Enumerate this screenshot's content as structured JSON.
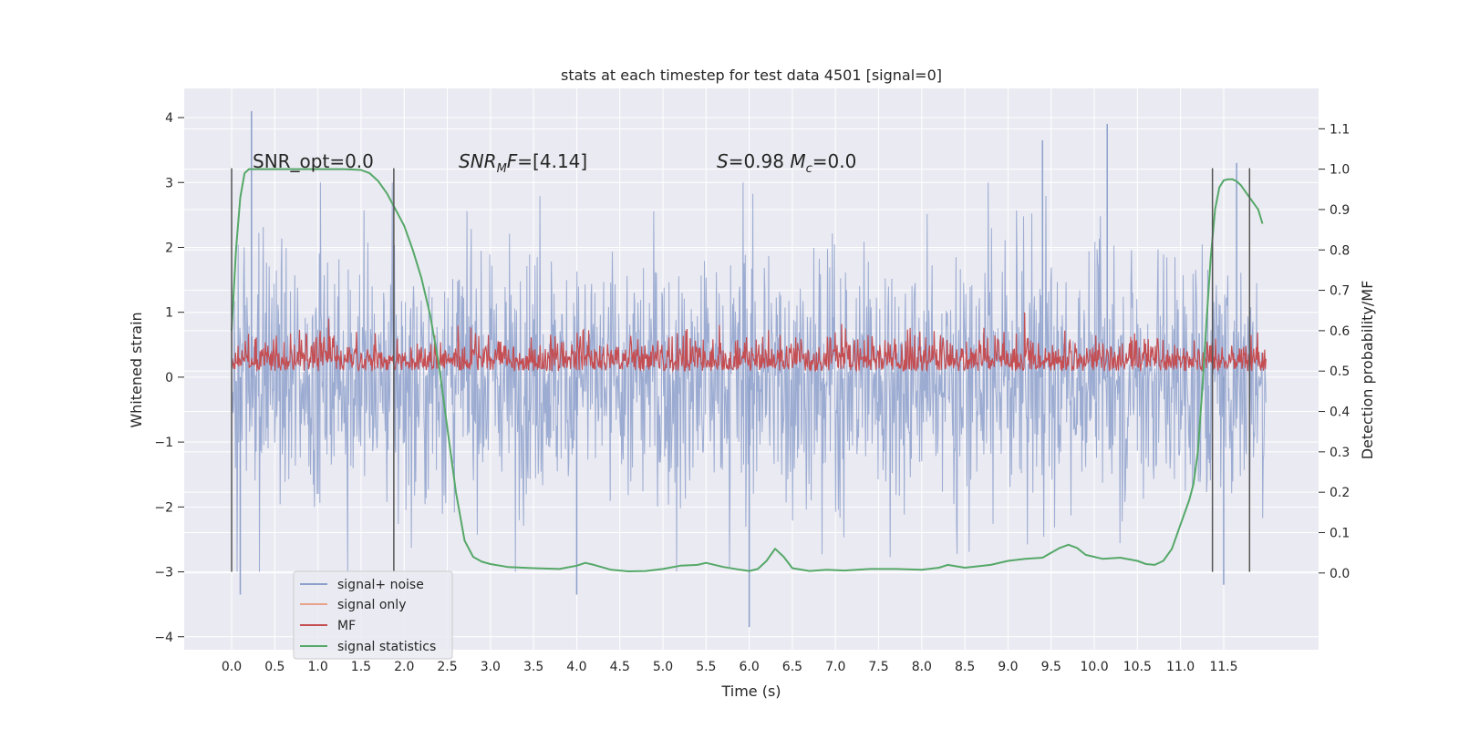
{
  "chart_data": {
    "type": "line",
    "title": "stats at each timestep for test data 4501 [signal=0]",
    "xlabel": "Time (s)",
    "ylabel": "Whitened strain",
    "ylabel_right": "Detection probability/MF",
    "xlim": [
      -0.55,
      12.6
    ],
    "ylim": [
      -4.2,
      4.45
    ],
    "ylim_right": [
      -0.19,
      1.2
    ],
    "x_ticks": [
      0.0,
      0.5,
      1.0,
      1.5,
      2.0,
      2.5,
      3.0,
      3.5,
      4.0,
      4.5,
      5.0,
      5.5,
      6.0,
      6.5,
      7.0,
      7.5,
      8.0,
      8.5,
      9.0,
      9.5,
      10.0,
      10.5,
      11.0,
      11.5
    ],
    "x_tick_labels": [
      "0.0",
      "0.5",
      "1.0",
      "1.5",
      "2.0",
      "2.5",
      "3.0",
      "3.5",
      "4.0",
      "4.5",
      "5.0",
      "5.5",
      "6.0",
      "6.5",
      "7.0",
      "7.5",
      "8.0",
      "8.5",
      "9.0",
      "9.5",
      "10.0",
      "10.5",
      "11.0",
      "11.5"
    ],
    "y_ticks": [
      -4,
      -3,
      -2,
      -1,
      0,
      1,
      2,
      3,
      4
    ],
    "y_tick_labels": [
      "−4",
      "−3",
      "−2",
      "−1",
      "0",
      "1",
      "2",
      "3",
      "4"
    ],
    "y_ticks_right": [
      0.0,
      0.1,
      0.2,
      0.3,
      0.4,
      0.5,
      0.6,
      0.7,
      0.8,
      0.9,
      1.0,
      1.1
    ],
    "y_tick_labels_right": [
      "0.0",
      "0.1",
      "0.2",
      "0.3",
      "0.4",
      "0.5",
      "0.6",
      "0.7",
      "0.8",
      "0.9",
      "1.0",
      "1.1"
    ],
    "grid": true,
    "legend_position": "lower-left",
    "annotations": [
      {
        "text": "SNR_opt=0.0",
        "x": 0.2,
        "y": 3.3
      },
      {
        "text": "SNR_MF=[4.14]",
        "x": 2.6,
        "y": 3.3
      },
      {
        "text": "S=0.98   M_c=0.0",
        "x": 5.6,
        "y": 3.3
      }
    ],
    "vertical_lines": [
      {
        "x": 0.0,
        "y_range": [
          -3.0,
          3.22
        ]
      },
      {
        "x": 1.88,
        "y_range": [
          -3.0,
          3.22
        ]
      },
      {
        "x": 11.37,
        "y_range": [
          -3.0,
          3.22
        ]
      },
      {
        "x": 11.8,
        "y_range": [
          -3.0,
          3.22
        ]
      }
    ],
    "series": [
      {
        "name": "signal+ noise",
        "axis": "left",
        "color": "#8da0cb",
        "description_x_range": [
          0.0,
          11.99
        ],
        "typical_envelope": [
          -1.8,
          1.8
        ],
        "peaks": [
          [
            0.23,
            4.1
          ],
          [
            0.1,
            -3.35
          ],
          [
            9.4,
            3.65
          ],
          [
            10.15,
            3.9
          ],
          [
            6.0,
            -3.85
          ],
          [
            4.0,
            -3.35
          ],
          [
            11.65,
            3.3
          ],
          [
            11.5,
            -3.2
          ]
        ]
      },
      {
        "name": "signal only",
        "axis": "left",
        "color": "#e8a38a",
        "x": [],
        "y": []
      },
      {
        "name": "MF",
        "axis": "right",
        "color": "#c44e52",
        "description_x_range": [
          0.0,
          11.99
        ],
        "baseline": 0.5,
        "typical_max": 0.62,
        "peak_max": 0.66
      },
      {
        "name": "signal statistics",
        "axis": "right",
        "color": "#55a868",
        "x": [
          0.0,
          0.05,
          0.1,
          0.15,
          0.2,
          0.3,
          0.5,
          0.8,
          1.0,
          1.3,
          1.5,
          1.6,
          1.7,
          1.8,
          1.9,
          2.0,
          2.1,
          2.2,
          2.3,
          2.4,
          2.5,
          2.6,
          2.7,
          2.8,
          2.9,
          3.0,
          3.2,
          3.5,
          3.8,
          4.0,
          4.1,
          4.2,
          4.4,
          4.6,
          4.8,
          5.0,
          5.2,
          5.4,
          5.5,
          5.7,
          5.9,
          6.0,
          6.1,
          6.2,
          6.3,
          6.4,
          6.5,
          6.7,
          6.9,
          7.1,
          7.4,
          7.7,
          8.0,
          8.2,
          8.3,
          8.5,
          8.8,
          9.0,
          9.2,
          9.4,
          9.5,
          9.6,
          9.7,
          9.8,
          9.9,
          10.1,
          10.3,
          10.5,
          10.6,
          10.7,
          10.8,
          10.9,
          11.0,
          11.1,
          11.15,
          11.2,
          11.25,
          11.3,
          11.35,
          11.4,
          11.45,
          11.5,
          11.55,
          11.6,
          11.65,
          11.7,
          11.8,
          11.9,
          11.95
        ],
        "y": [
          0.6,
          0.8,
          0.93,
          0.99,
          1.0,
          1.0,
          1.0,
          1.0,
          1.0,
          1.0,
          0.998,
          0.99,
          0.97,
          0.94,
          0.9,
          0.86,
          0.8,
          0.73,
          0.64,
          0.52,
          0.36,
          0.2,
          0.08,
          0.04,
          0.028,
          0.022,
          0.015,
          0.012,
          0.01,
          0.018,
          0.025,
          0.02,
          0.008,
          0.004,
          0.005,
          0.01,
          0.018,
          0.02,
          0.025,
          0.015,
          0.008,
          0.005,
          0.01,
          0.03,
          0.06,
          0.04,
          0.012,
          0.005,
          0.008,
          0.006,
          0.01,
          0.01,
          0.008,
          0.013,
          0.02,
          0.013,
          0.02,
          0.03,
          0.035,
          0.038,
          0.05,
          0.062,
          0.07,
          0.062,
          0.045,
          0.035,
          0.038,
          0.03,
          0.022,
          0.02,
          0.03,
          0.06,
          0.12,
          0.18,
          0.22,
          0.3,
          0.45,
          0.62,
          0.78,
          0.9,
          0.955,
          0.972,
          0.975,
          0.975,
          0.97,
          0.96,
          0.93,
          0.9,
          0.865
        ]
      }
    ]
  },
  "colors": {
    "plot_background": "#eaeaf2",
    "grid": "#ffffff",
    "vertical_lines": "#555555"
  }
}
